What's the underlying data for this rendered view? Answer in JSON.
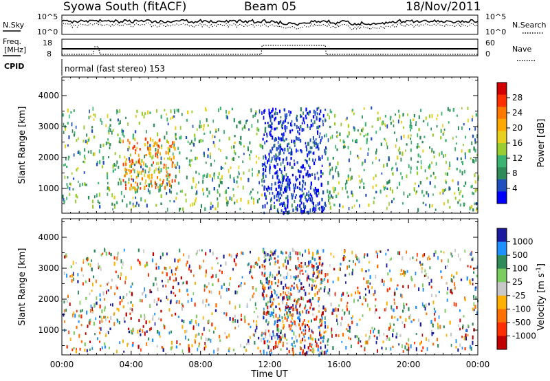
{
  "header": {
    "station": "Syowa South (fitACF)",
    "beam": "Beam 05",
    "date": "18/Nov/2011"
  },
  "sky_panel": {
    "left_label": "N.Sky",
    "right_label": "N.Search",
    "left_ticks": [
      "10^5",
      "10^0"
    ],
    "right_ticks": [
      "10^5",
      "10^0"
    ]
  },
  "freq_panel": {
    "left_label_1": "Freq.",
    "left_label_2": "[MHz]",
    "right_label": "Nave",
    "left_ticks": [
      "18",
      "8"
    ],
    "right_ticks": [
      "60",
      "0"
    ]
  },
  "cpid": {
    "label": "CPID",
    "mode_text": "normal (fast stereo) 153"
  },
  "chart_data": [
    {
      "type": "heatmap",
      "name": "power",
      "ylabel": "Slant Range [km]",
      "xlabel": "",
      "xlim": [
        0,
        24
      ],
      "ylim": [
        200,
        4600
      ],
      "yticks": [
        "1000",
        "2000",
        "3000",
        "4000"
      ],
      "colorbar": {
        "label": "Power [dB]",
        "ticks": [
          "28",
          "24",
          "20",
          "16",
          "12",
          "8",
          "4"
        ],
        "colors": [
          "#d00000",
          "#ff3000",
          "#ff7800",
          "#ffa800",
          "#e8d020",
          "#9acd32",
          "#3cb371",
          "#2e8b57",
          "#2050c0",
          "#0000ff"
        ]
      },
      "regions": [
        {
          "x": [
            0,
            11.5
          ],
          "y": [
            300,
            3600
          ],
          "level": "12"
        },
        {
          "x": [
            3.5,
            6.5
          ],
          "y": [
            900,
            2600
          ],
          "level": "20-28"
        },
        {
          "x": [
            11.5,
            15.2
          ],
          "y": [
            200,
            3600
          ],
          "level": "4-8"
        },
        {
          "x": [
            15.2,
            24
          ],
          "y": [
            300,
            3600
          ],
          "level": "12"
        }
      ]
    },
    {
      "type": "heatmap",
      "name": "velocity",
      "ylabel": "Slant Range [km]",
      "xlabel": "Time UT",
      "xlim": [
        0,
        24
      ],
      "ylim": [
        200,
        4600
      ],
      "xticks": [
        "00:00",
        "04:00",
        "08:00",
        "12:00",
        "16:00",
        "20:00",
        "00:00"
      ],
      "yticks": [
        "1000",
        "2000",
        "3000",
        "4000"
      ],
      "colorbar": {
        "label": "Velocity [m s",
        "label_sup": "-1",
        "label_end": "]",
        "ticks": [
          "1000",
          "500",
          "100",
          "25",
          "-25",
          "-100",
          "-500",
          "-1000"
        ],
        "colors": [
          "#1a1aa0",
          "#1e90ff",
          "#2e8b57",
          "#7ccd5f",
          "#c8c8c8",
          "#ffb000",
          "#ff7000",
          "#ff3000",
          "#c00000"
        ]
      },
      "regions": [
        {
          "x": [
            0,
            11.5
          ],
          "y": [
            300,
            3600
          ],
          "level": "mixed"
        },
        {
          "x": [
            11.5,
            15.2
          ],
          "y": [
            200,
            3600
          ],
          "level": "mixed"
        },
        {
          "x": [
            15.2,
            24
          ],
          "y": [
            300,
            3600
          ],
          "level": "mixed"
        }
      ]
    }
  ]
}
